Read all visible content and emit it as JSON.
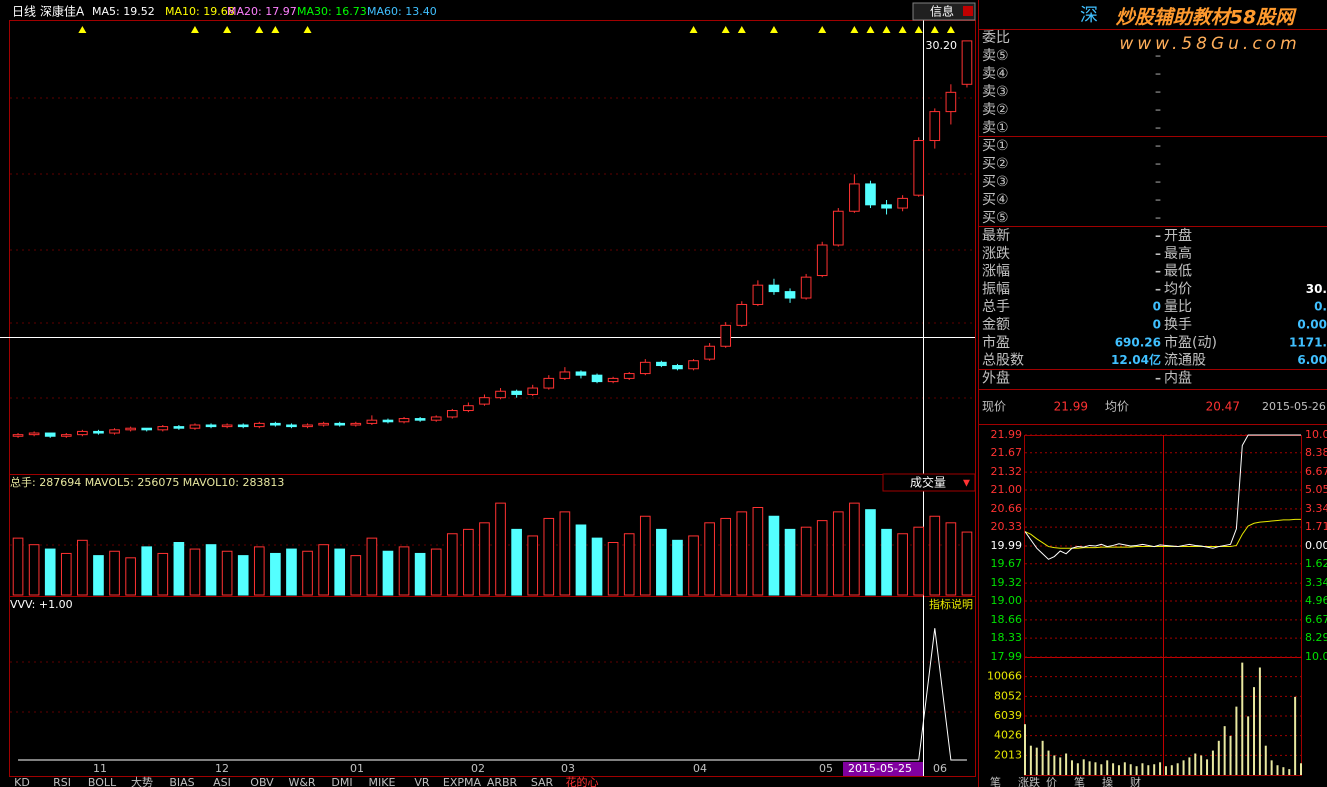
{
  "header": {
    "period": "日线",
    "stock": "深康佳A",
    "ma_labels": [
      "MA5: 19.52",
      "MA10: 19.68",
      "MA20: 17.97",
      "MA30: 16.73",
      "MA60: 13.40"
    ],
    "ma_colors": [
      "#ffffff",
      "#ffff00",
      "#ff80ff",
      "#00ff00",
      "#40c0ff"
    ],
    "info_button": "信息",
    "watermark": "炒股辅助教材58股网",
    "watermark_url": "www.58Gu.com"
  },
  "kline": {
    "type": "candlestick",
    "ylim": [
      3.5,
      31.5
    ],
    "last_price_label": "30.20",
    "up_color": "#ff3232",
    "down_color": "#54ffff",
    "candles": [
      [
        5.6,
        5.8,
        5.5,
        5.7
      ],
      [
        5.7,
        5.9,
        5.6,
        5.8
      ],
      [
        5.8,
        5.8,
        5.5,
        5.6
      ],
      [
        5.6,
        5.8,
        5.5,
        5.7
      ],
      [
        5.7,
        6.0,
        5.6,
        5.9
      ],
      [
        5.9,
        6.0,
        5.7,
        5.8
      ],
      [
        5.8,
        6.1,
        5.7,
        6.0
      ],
      [
        6.0,
        6.2,
        5.9,
        6.1
      ],
      [
        6.1,
        6.1,
        5.9,
        6.0
      ],
      [
        6.0,
        6.3,
        5.9,
        6.2
      ],
      [
        6.2,
        6.3,
        6.0,
        6.1
      ],
      [
        6.1,
        6.4,
        6.0,
        6.3
      ],
      [
        6.3,
        6.4,
        6.1,
        6.2
      ],
      [
        6.2,
        6.4,
        6.1,
        6.3
      ],
      [
        6.3,
        6.4,
        6.1,
        6.2
      ],
      [
        6.2,
        6.5,
        6.1,
        6.4
      ],
      [
        6.4,
        6.5,
        6.2,
        6.3
      ],
      [
        6.3,
        6.4,
        6.1,
        6.2
      ],
      [
        6.2,
        6.4,
        6.1,
        6.3
      ],
      [
        6.3,
        6.5,
        6.2,
        6.4
      ],
      [
        6.4,
        6.5,
        6.2,
        6.3
      ],
      [
        6.3,
        6.5,
        6.2,
        6.4
      ],
      [
        6.4,
        6.9,
        6.3,
        6.6
      ],
      [
        6.6,
        6.7,
        6.4,
        6.5
      ],
      [
        6.5,
        6.8,
        6.4,
        6.7
      ],
      [
        6.7,
        6.8,
        6.5,
        6.6
      ],
      [
        6.6,
        6.9,
        6.5,
        6.8
      ],
      [
        6.8,
        7.3,
        6.7,
        7.2
      ],
      [
        7.2,
        7.7,
        7.1,
        7.5
      ],
      [
        7.6,
        8.2,
        7.5,
        8.0
      ],
      [
        8.0,
        8.6,
        7.9,
        8.4
      ],
      [
        8.4,
        8.5,
        8.0,
        8.2
      ],
      [
        8.2,
        8.8,
        8.1,
        8.6
      ],
      [
        8.6,
        9.4,
        8.5,
        9.2
      ],
      [
        9.2,
        9.9,
        9.1,
        9.6
      ],
      [
        9.6,
        9.7,
        9.2,
        9.4
      ],
      [
        9.4,
        9.5,
        8.9,
        9.0
      ],
      [
        9.0,
        9.3,
        8.9,
        9.2
      ],
      [
        9.2,
        9.6,
        9.1,
        9.5
      ],
      [
        9.5,
        10.4,
        9.4,
        10.2
      ],
      [
        10.2,
        10.3,
        9.9,
        10.0
      ],
      [
        10.0,
        10.1,
        9.7,
        9.8
      ],
      [
        9.8,
        10.4,
        9.7,
        10.3
      ],
      [
        10.4,
        11.4,
        10.3,
        11.2
      ],
      [
        11.2,
        12.7,
        11.1,
        12.5
      ],
      [
        12.5,
        14.0,
        12.4,
        13.8
      ],
      [
        13.8,
        15.3,
        13.7,
        15.0
      ],
      [
        15.0,
        15.4,
        14.4,
        14.6
      ],
      [
        14.6,
        14.8,
        13.9,
        14.2
      ],
      [
        14.2,
        15.7,
        14.1,
        15.5
      ],
      [
        15.6,
        17.7,
        15.5,
        17.5
      ],
      [
        17.5,
        19.8,
        17.4,
        19.6
      ],
      [
        19.6,
        21.9,
        19.5,
        21.3
      ],
      [
        21.3,
        21.5,
        19.8,
        20.0
      ],
      [
        20.0,
        20.3,
        19.4,
        19.8
      ],
      [
        19.8,
        20.6,
        19.6,
        20.4
      ],
      [
        20.6,
        24.2,
        20.5,
        24.0
      ],
      [
        24.0,
        26.0,
        23.5,
        25.8
      ],
      [
        25.8,
        27.5,
        25.0,
        27.0
      ],
      [
        27.5,
        30.2,
        27.3,
        30.2
      ]
    ],
    "signals": [
      4,
      11,
      13,
      15,
      16,
      18,
      42,
      44,
      45,
      47,
      50,
      52,
      53,
      54,
      55,
      56,
      57,
      58
    ],
    "month_labels": [
      "11",
      "12",
      "01",
      "02",
      "03",
      "04",
      "05",
      "2015-05-25",
      "06"
    ]
  },
  "volume": {
    "type": "bar",
    "title": "总手: 287694  MAVOL5: 256075  MAVOL10: 283813",
    "selector": "成交量",
    "ylim": [
      0,
      480000
    ],
    "values": [
      260000,
      230000,
      210000,
      190000,
      250000,
      180000,
      200000,
      170000,
      220000,
      190000,
      240000,
      210000,
      230000,
      200000,
      180000,
      220000,
      190000,
      210000,
      200000,
      230000,
      210000,
      180000,
      260000,
      200000,
      220000,
      190000,
      210000,
      280000,
      300000,
      330000,
      420000,
      300000,
      270000,
      350000,
      380000,
      320000,
      260000,
      240000,
      280000,
      360000,
      300000,
      250000,
      270000,
      330000,
      350000,
      380000,
      400000,
      360000,
      300000,
      310000,
      340000,
      380000,
      420000,
      390000,
      300000,
      280000,
      310000,
      360000,
      330000,
      287694
    ]
  },
  "indicator": {
    "type": "line",
    "title": "VVV: +1.00",
    "help": "指标说明",
    "ylim": [
      0,
      1.1
    ],
    "values": [
      0,
      0,
      0,
      0,
      0,
      0,
      0,
      0,
      0,
      0,
      0,
      0,
      0,
      0,
      0,
      0,
      0,
      0,
      0,
      0,
      0,
      0,
      0,
      0,
      0,
      0,
      0,
      0,
      0,
      0,
      0,
      0,
      0,
      0,
      0,
      0,
      0,
      0,
      0,
      0,
      0,
      0,
      0,
      0,
      0,
      0,
      0,
      0,
      0,
      0,
      0,
      0,
      0,
      0,
      0,
      0,
      0,
      1,
      0,
      0
    ]
  },
  "order_book": {
    "title": "委比",
    "rows": [
      [
        "卖⑤",
        "–"
      ],
      [
        "卖④",
        "–"
      ],
      [
        "卖③",
        "–"
      ],
      [
        "卖②",
        "–"
      ],
      [
        "卖①",
        "–"
      ],
      [
        "买①",
        "–"
      ],
      [
        "买②",
        "–"
      ],
      [
        "买③",
        "–"
      ],
      [
        "买④",
        "–"
      ],
      [
        "买⑤",
        "–"
      ]
    ]
  },
  "stats": {
    "rows": [
      [
        "最新",
        "–",
        "开盘",
        ""
      ],
      [
        "涨跌",
        "–",
        "最高",
        ""
      ],
      [
        "涨幅",
        "–",
        "最低",
        ""
      ],
      [
        "振幅",
        "–",
        "均价",
        "30."
      ],
      [
        "总手",
        "0",
        "量比",
        "0."
      ],
      [
        "金额",
        "0",
        "换手",
        "0.00"
      ],
      [
        "市盈",
        "690.26",
        "市盈(动)",
        "1171."
      ],
      [
        "总股数",
        "12.04亿",
        "流通股",
        "6.00"
      ],
      [
        "外盘",
        "–",
        "内盘",
        ""
      ]
    ]
  },
  "intraday": {
    "type": "line",
    "price_label": "现价",
    "price": "21.99",
    "avg_label": "均价",
    "avg": "20.47",
    "date": "2015-05-26",
    "ylim": [
      17.99,
      21.99
    ],
    "pct_lim": [
      -10,
      10
    ],
    "vol_lim": [
      0,
      12079
    ],
    "yticks": [
      21.99,
      21.67,
      21.32,
      {
        "value": 21,
        "label": "21.00"
      },
      20.66,
      20.33,
      19.99,
      19.67,
      19.32,
      {
        "value": 19,
        "label": "19.00"
      },
      18.66,
      18.33,
      17.99
    ],
    "pct_ticks": [
      {
        "value": 10,
        "label": "10.0"
      },
      8.38,
      6.67,
      5.05,
      3.34,
      1.71,
      {
        "value": 0,
        "label": "0.00"
      },
      {
        "value": -1.62,
        "label": "1.62"
      },
      {
        "value": -3.34,
        "label": "3.34"
      },
      {
        "value": -4.96,
        "label": "4.96"
      },
      {
        "value": -6.67,
        "label": "6.67"
      },
      {
        "value": -8.29,
        "label": "8.29"
      },
      {
        "value": -10,
        "label": "10.0"
      }
    ],
    "vol_ticks": [
      10066,
      8052,
      6039,
      4026,
      2013
    ],
    "values": [
      20.25,
      20.1,
      19.95,
      19.85,
      19.75,
      19.8,
      19.9,
      19.85,
      19.95,
      19.98,
      19.97,
      20.0,
      19.99,
      20.02,
      19.98,
      20.0,
      20.03,
      20.01,
      19.99,
      20.0,
      20.02,
      20.0,
      19.98,
      20.01,
      20.0,
      19.99,
      19.98,
      20.0,
      20.02,
      20.0,
      19.99,
      19.97,
      19.95,
      19.98,
      20.0,
      20.02,
      20.3,
      21.8,
      21.99,
      21.99,
      21.99,
      21.99,
      21.99,
      21.99,
      21.99,
      21.99,
      21.99,
      21.99
    ],
    "avg_values": [
      20.25,
      20.2,
      20.12,
      20.05,
      19.98,
      19.96,
      19.95,
      19.95,
      19.95,
      19.95,
      19.96,
      19.96,
      19.96,
      19.97,
      19.97,
      19.97,
      19.97,
      19.97,
      19.97,
      19.98,
      19.98,
      19.98,
      19.98,
      19.98,
      19.98,
      19.98,
      19.98,
      19.98,
      19.98,
      19.98,
      19.98,
      19.98,
      19.98,
      19.98,
      19.98,
      19.98,
      20.0,
      20.2,
      20.35,
      20.4,
      20.42,
      20.43,
      20.44,
      20.45,
      20.46,
      20.46,
      20.47,
      20.47
    ],
    "volumes": [
      5200,
      3000,
      2800,
      3500,
      2500,
      2000,
      1800,
      2200,
      1500,
      1200,
      1600,
      1400,
      1300,
      1100,
      1500,
      1200,
      1000,
      1300,
      1100,
      900,
      1200,
      1000,
      1100,
      1300,
      900,
      1000,
      1200,
      1500,
      1800,
      2200,
      2000,
      1600,
      2500,
      3500,
      5000,
      4000,
      7000,
      11500,
      6000,
      9000,
      11000,
      3000,
      1500,
      1000,
      800,
      600,
      8000,
      1200
    ]
  },
  "tabs": [
    "KD",
    "RSI",
    "BOLL",
    "大势",
    "BIAS",
    "ASI",
    "OBV",
    "W&R",
    "DMI",
    "MIKE",
    "VR",
    "EXPMA",
    "ARBR",
    "SAR",
    "花的心"
  ],
  "right_tabs": [
    "笔",
    "涨跌",
    "价",
    "笔",
    "操",
    "财"
  ]
}
